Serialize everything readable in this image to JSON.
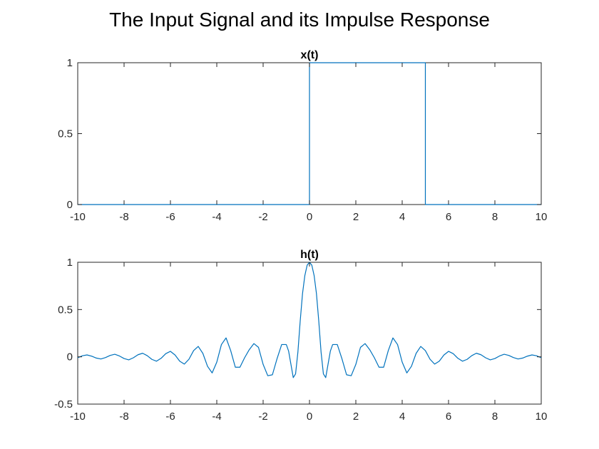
{
  "figure_title": "The Input Signal and its Impulse Response",
  "colors": {
    "line": "#0072bd",
    "axis": "#262626",
    "background": "#ffffff"
  },
  "chart_data": [
    {
      "type": "line",
      "title": "x(t)",
      "xlabel": "",
      "ylabel": "",
      "xlim": [
        -10,
        10
      ],
      "ylim": [
        0,
        1
      ],
      "xticks": [
        -10,
        -8,
        -6,
        -4,
        -2,
        0,
        2,
        4,
        6,
        8,
        10
      ],
      "yticks": [
        0,
        0.5,
        1
      ],
      "xtick_labels": [
        "-10",
        "-8",
        "-6",
        "-4",
        "-2",
        "0",
        "2",
        "4",
        "6",
        "8",
        "10"
      ],
      "ytick_labels": [
        "0",
        "0.5",
        "1"
      ],
      "grid": false,
      "series": [
        {
          "x": [
            -10,
            0,
            0,
            5,
            5,
            10
          ],
          "y": [
            0,
            0,
            1,
            1,
            0,
            0
          ]
        }
      ]
    },
    {
      "type": "line",
      "title": "h(t)",
      "xlabel": "",
      "ylabel": "",
      "xlim": [
        -10,
        10
      ],
      "ylim": [
        -0.5,
        1
      ],
      "xticks": [
        -10,
        -8,
        -6,
        -4,
        -2,
        0,
        2,
        4,
        6,
        8,
        10
      ],
      "yticks": [
        -0.5,
        0,
        0.5,
        1
      ],
      "xtick_labels": [
        "-10",
        "-8",
        "-6",
        "-4",
        "-2",
        "0",
        "2",
        "4",
        "6",
        "8",
        "10"
      ],
      "ytick_labels": [
        "-0.5",
        "0",
        "0.5",
        "1"
      ],
      "grid": false,
      "series": [
        {
          "x": [
            -10,
            -9.8,
            -9.6,
            -9.4,
            -9.2,
            -9,
            -8.8,
            -8.6,
            -8.4,
            -8.2,
            -8,
            -7.8,
            -7.6,
            -7.4,
            -7.2,
            -7,
            -6.8,
            -6.6,
            -6.4,
            -6.2,
            -6,
            -5.8,
            -5.6,
            -5.4,
            -5.2,
            -5,
            -4.8,
            -4.6,
            -4.4,
            -4.2,
            -4,
            -3.8,
            -3.6,
            -3.4,
            -3.2,
            -3,
            -2.8,
            -2.6,
            -2.4,
            -2.2,
            -2,
            -1.8,
            -1.6,
            -1.4,
            -1.2,
            -1,
            -0.9,
            -0.8,
            -0.7,
            -0.6,
            -0.5,
            -0.4,
            -0.3,
            -0.2,
            -0.1,
            0,
            0.1,
            0.2,
            0.3,
            0.4,
            0.5,
            0.6,
            0.7,
            0.8,
            0.9,
            1,
            1.2,
            1.4,
            1.6,
            1.8,
            2,
            2.2,
            2.4,
            2.6,
            2.8,
            3,
            3.2,
            3.4,
            3.6,
            3.8,
            4,
            4.2,
            4.4,
            4.6,
            4.8,
            5,
            5.2,
            5.4,
            5.6,
            5.8,
            6,
            6.2,
            6.4,
            6.6,
            6.8,
            7,
            7.2,
            7.4,
            7.6,
            7.8,
            8,
            8.2,
            8.4,
            8.6,
            8.8,
            9,
            9.2,
            9.4,
            9.6,
            9.8,
            10
          ],
          "y": [
            -0.01,
            0.011,
            0.02,
            0.007,
            -0.013,
            -0.023,
            -0.008,
            0.015,
            0.027,
            0.009,
            -0.018,
            -0.032,
            -0.01,
            0.022,
            0.038,
            0.012,
            -0.027,
            -0.046,
            -0.015,
            0.034,
            0.058,
            0.019,
            -0.046,
            -0.077,
            -0.025,
            0.066,
            0.11,
            0.036,
            -0.1,
            -0.17,
            -0.056,
            0.13,
            0.2,
            0.066,
            -0.11,
            -0.11,
            -0.01,
            0.075,
            0.14,
            0.1,
            -0.08,
            -0.2,
            -0.19,
            -0.02,
            0.13,
            0.13,
            0.06,
            -0.08,
            -0.22,
            -0.18,
            0.05,
            0.38,
            0.67,
            0.86,
            0.97,
            1,
            0.97,
            0.86,
            0.67,
            0.38,
            0.05,
            -0.18,
            -0.22,
            -0.08,
            0.06,
            0.13,
            0.13,
            -0.02,
            -0.19,
            -0.2,
            -0.08,
            0.1,
            0.14,
            0.075,
            -0.01,
            -0.11,
            -0.11,
            0.066,
            0.2,
            0.13,
            -0.056,
            -0.17,
            -0.1,
            0.036,
            0.11,
            0.066,
            -0.025,
            -0.077,
            -0.046,
            0.019,
            0.058,
            0.034,
            -0.015,
            -0.046,
            -0.027,
            0.012,
            0.038,
            0.022,
            -0.01,
            -0.032,
            -0.018,
            0.009,
            0.027,
            0.015,
            -0.008,
            -0.023,
            -0.013,
            0.007,
            0.02,
            0.011,
            -0.01
          ]
        }
      ]
    }
  ]
}
